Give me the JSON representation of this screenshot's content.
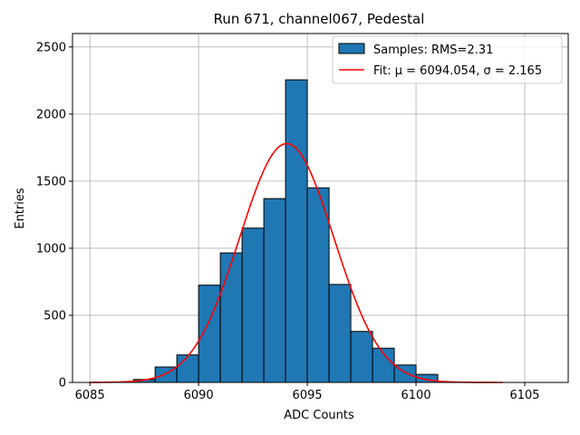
{
  "chart_data": {
    "type": "histogram",
    "title": "Run 671, channel067, Pedestal",
    "xlabel": "ADC Counts",
    "ylabel": "Entries",
    "xlim": [
      6084.2,
      6107
    ],
    "ylim": [
      0,
      2600
    ],
    "xticks": [
      6085,
      6090,
      6095,
      6100,
      6105
    ],
    "yticks": [
      0,
      500,
      1000,
      1500,
      2000,
      2500
    ],
    "grid": true,
    "bin_width": 1,
    "bins": [
      {
        "left": 6085,
        "count": 0
      },
      {
        "left": 6086,
        "count": 3
      },
      {
        "left": 6087,
        "count": 22
      },
      {
        "left": 6088,
        "count": 115
      },
      {
        "left": 6089,
        "count": 205
      },
      {
        "left": 6090,
        "count": 725
      },
      {
        "left": 6091,
        "count": 965
      },
      {
        "left": 6092,
        "count": 1150
      },
      {
        "left": 6093,
        "count": 1370
      },
      {
        "left": 6094,
        "count": 2255
      },
      {
        "left": 6095,
        "count": 1450
      },
      {
        "left": 6096,
        "count": 730
      },
      {
        "left": 6097,
        "count": 380
      },
      {
        "left": 6098,
        "count": 255
      },
      {
        "left": 6099,
        "count": 130
      },
      {
        "left": 6100,
        "count": 60
      },
      {
        "left": 6101,
        "count": 3
      },
      {
        "left": 6102,
        "count": 0
      },
      {
        "left": 6103,
        "count": 0
      }
    ],
    "fit": {
      "type": "gaussian",
      "mu": 6094.054,
      "sigma": 2.165,
      "amplitude": 1780,
      "x_range": [
        6085,
        6104
      ]
    },
    "legend": {
      "position": "upper right",
      "entries": [
        {
          "label": "Samples: RMS=2.31",
          "kind": "patch"
        },
        {
          "label": "Fit: μ = 6094.054, σ = 2.165",
          "kind": "line"
        }
      ]
    },
    "colors": {
      "bar_fill": "#1f77b4",
      "bar_edge": "#000000",
      "fit_line": "#ff0000",
      "grid": "#b0b0b0"
    }
  }
}
